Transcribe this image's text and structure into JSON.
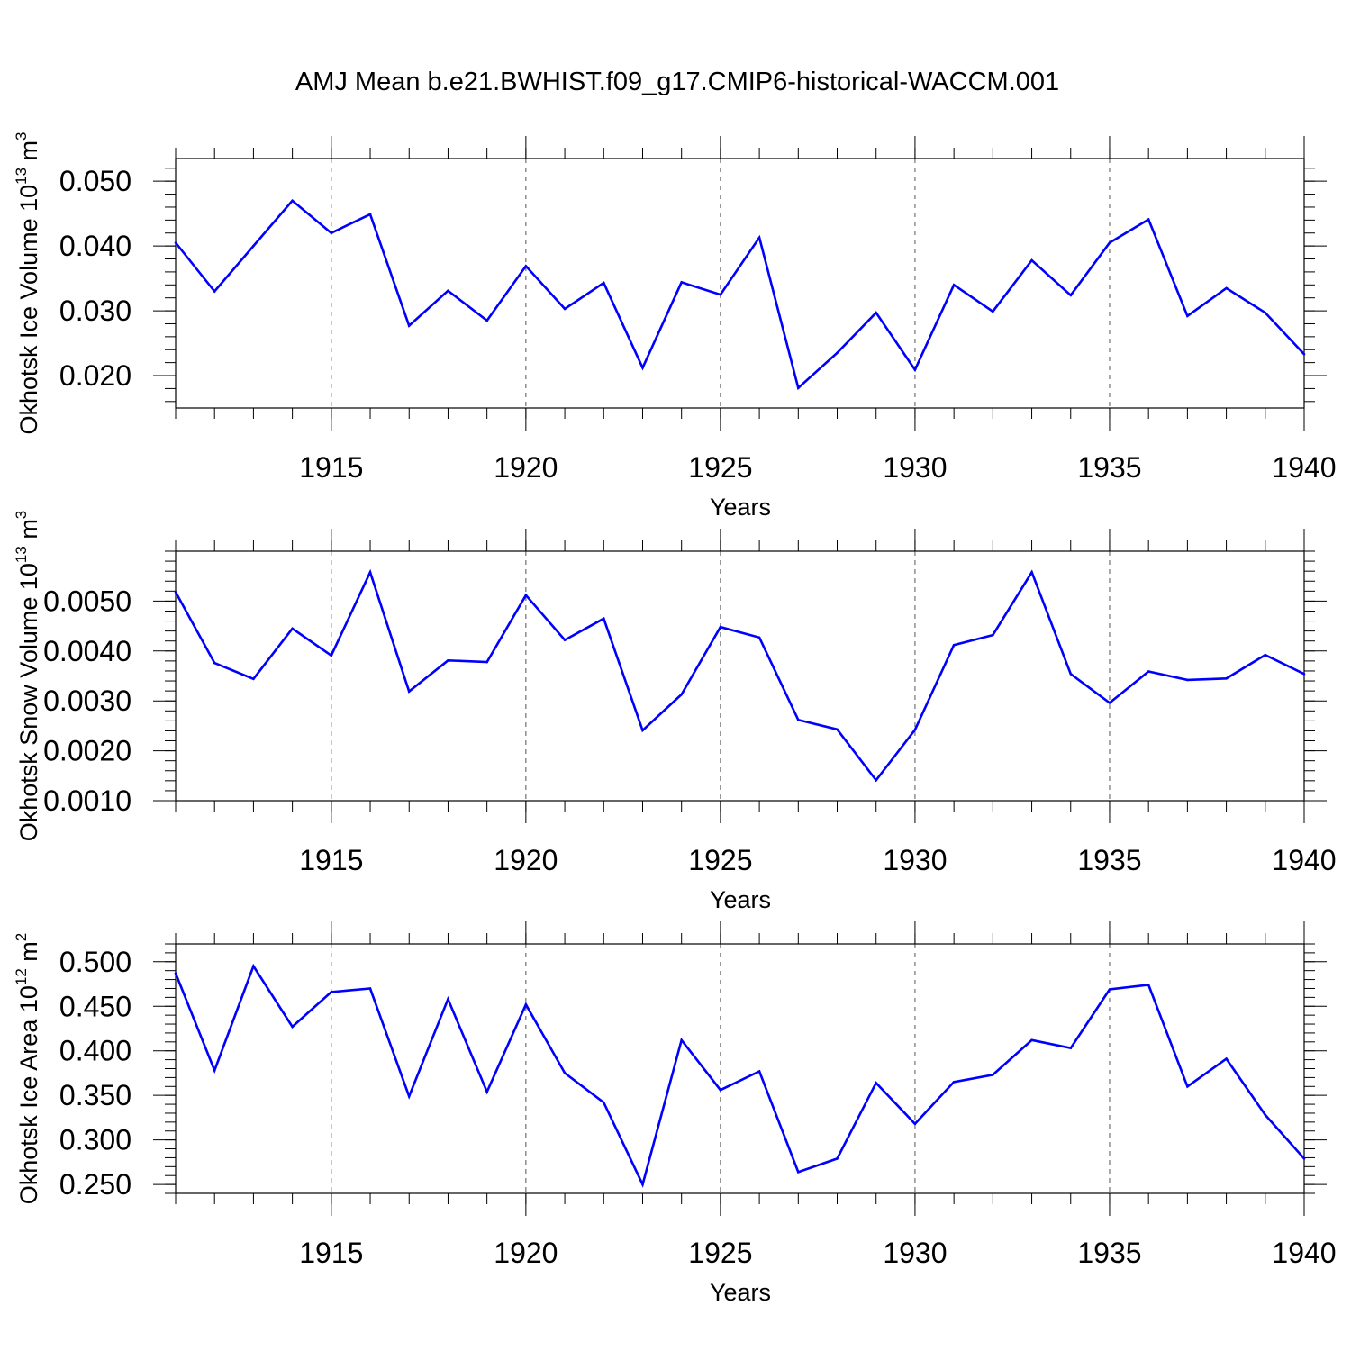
{
  "figure": {
    "title": "AMJ Mean b.e21.BWHIST.f09_g17.CMIP6-historical-WACCM.001"
  },
  "chart_data": [
    {
      "type": "line",
      "ylabel": {
        "text": "Okhotsk Ice Volume 10",
        "exp": "13",
        "unit": " m",
        "unit_exp": "3"
      },
      "xlabel": "Years",
      "xlim": [
        1911,
        1940
      ],
      "ylim": [
        0.015,
        0.0535
      ],
      "x_ticks": [
        1915,
        1920,
        1925,
        1930,
        1935,
        1940
      ],
      "y_ticks": [
        0.02,
        0.03,
        0.04,
        0.05
      ],
      "y_tick_labels": [
        "0.020",
        "0.030",
        "0.040",
        "0.050"
      ],
      "y_minor_step": 0.002,
      "grid": "vertical dashed at major x ticks",
      "color": "#0000ff",
      "x": [
        1911,
        1912,
        1913,
        1914,
        1915,
        1916,
        1917,
        1918,
        1919,
        1920,
        1921,
        1922,
        1923,
        1924,
        1925,
        1926,
        1927,
        1928,
        1929,
        1930,
        1931,
        1932,
        1933,
        1934,
        1935,
        1936,
        1937,
        1938,
        1939,
        1940
      ],
      "values": [
        0.0405,
        0.033,
        0.04,
        0.047,
        0.042,
        0.0449,
        0.0277,
        0.0331,
        0.0285,
        0.0369,
        0.0303,
        0.0343,
        0.0212,
        0.0344,
        0.0325,
        0.0413,
        0.0181,
        0.0235,
        0.0297,
        0.0209,
        0.034,
        0.0299,
        0.0378,
        0.0324,
        0.0405,
        0.0441,
        0.0292,
        0.0335,
        0.0297,
        0.0233
      ]
    },
    {
      "type": "line",
      "ylabel": {
        "text": "Okhotsk Snow Volume 10",
        "exp": "13",
        "unit": " m",
        "unit_exp": "3"
      },
      "xlabel": "Years",
      "xlim": [
        1911,
        1940
      ],
      "ylim": [
        0.001,
        0.006
      ],
      "x_ticks": [
        1915,
        1920,
        1925,
        1930,
        1935,
        1940
      ],
      "y_ticks": [
        0.001,
        0.002,
        0.003,
        0.004,
        0.005
      ],
      "y_tick_labels": [
        "0.0010",
        "0.0020",
        "0.0030",
        "0.0040",
        "0.0050"
      ],
      "y_minor_step": 0.0002,
      "grid": "vertical dashed at major x ticks",
      "color": "#0000ff",
      "x": [
        1911,
        1912,
        1913,
        1914,
        1915,
        1916,
        1917,
        1918,
        1919,
        1920,
        1921,
        1922,
        1923,
        1924,
        1925,
        1926,
        1927,
        1928,
        1929,
        1930,
        1931,
        1932,
        1933,
        1934,
        1935,
        1936,
        1937,
        1938,
        1939,
        1940
      ],
      "values": [
        0.00518,
        0.00376,
        0.00344,
        0.00445,
        0.00391,
        0.00558,
        0.00319,
        0.00381,
        0.00378,
        0.00512,
        0.00422,
        0.00465,
        0.00241,
        0.00313,
        0.00448,
        0.00427,
        0.00262,
        0.00243,
        0.00141,
        0.00242,
        0.00412,
        0.00432,
        0.00558,
        0.00354,
        0.00296,
        0.00359,
        0.00342,
        0.00345,
        0.00392,
        0.00354
      ]
    },
    {
      "type": "line",
      "ylabel": {
        "text": "Okhotsk Ice Area 10",
        "exp": "12",
        "unit": " m",
        "unit_exp": "2"
      },
      "xlabel": "Years",
      "xlim": [
        1911,
        1940
      ],
      "ylim": [
        0.24,
        0.52
      ],
      "x_ticks": [
        1915,
        1920,
        1925,
        1930,
        1935,
        1940
      ],
      "y_ticks": [
        0.25,
        0.3,
        0.35,
        0.4,
        0.45,
        0.5
      ],
      "y_tick_labels": [
        "0.250",
        "0.300",
        "0.350",
        "0.400",
        "0.450",
        "0.500"
      ],
      "y_minor_step": 0.01,
      "grid": "vertical dashed at major x ticks",
      "color": "#0000ff",
      "x": [
        1911,
        1912,
        1913,
        1914,
        1915,
        1916,
        1917,
        1918,
        1919,
        1920,
        1921,
        1922,
        1923,
        1924,
        1925,
        1926,
        1927,
        1928,
        1929,
        1930,
        1931,
        1932,
        1933,
        1934,
        1935,
        1936,
        1937,
        1938,
        1939,
        1940
      ],
      "values": [
        0.487,
        0.378,
        0.495,
        0.427,
        0.466,
        0.47,
        0.349,
        0.458,
        0.354,
        0.452,
        0.375,
        0.342,
        0.25,
        0.412,
        0.356,
        0.377,
        0.264,
        0.279,
        0.364,
        0.318,
        0.365,
        0.373,
        0.412,
        0.403,
        0.469,
        0.474,
        0.36,
        0.391,
        0.328,
        0.279
      ]
    }
  ]
}
